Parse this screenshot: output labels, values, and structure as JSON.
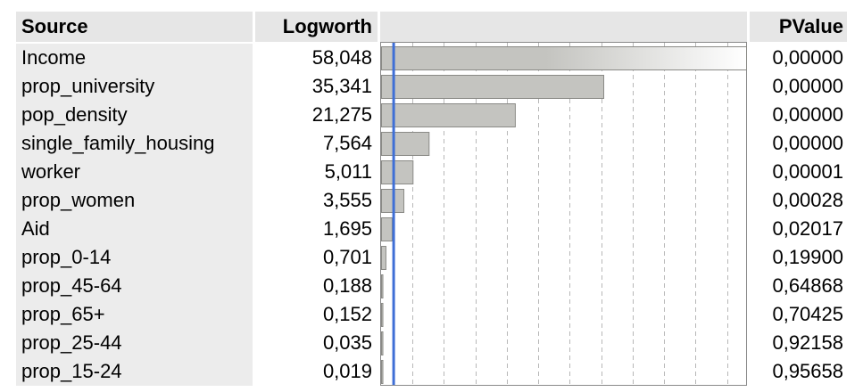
{
  "table": {
    "headers": {
      "source": "Source",
      "logworth": "Logworth",
      "bar": "",
      "pvalue": "PValue"
    }
  },
  "colors": {
    "bar_fill": "#c4c4c0",
    "bar_stroke": "#8a8a86",
    "reference_line": "#3f6fd6",
    "grid": "#b8b8b8",
    "source_bg": "#ececec",
    "header_bg": "#e6e6e6"
  },
  "chart_data": {
    "type": "bar",
    "orientation": "horizontal",
    "categories": [
      "Income",
      "prop_university",
      "pop_density",
      "single_family_housing",
      "worker",
      "prop_women",
      "Aid",
      "prop_0-14",
      "prop_45-64",
      "prop_65+",
      "prop_25-44",
      "prop_15-24"
    ],
    "logworth_labels": [
      "58,048",
      "35,341",
      "21,275",
      "7,564",
      "5,011",
      "3,555",
      "1,695",
      "0,701",
      "0,188",
      "0,152",
      "0,035",
      "0,019"
    ],
    "pvalue_labels": [
      "0,00000",
      "0,00000",
      "0,00000",
      "0,00000",
      "0,00001",
      "0,00028",
      "0,02017",
      "0,19900",
      "0,64868",
      "0,70425",
      "0,92158",
      "0,95658"
    ],
    "values": [
      58.048,
      35.341,
      21.275,
      7.564,
      5.011,
      3.555,
      1.695,
      0.701,
      0.188,
      0.152,
      0.035,
      0.019
    ],
    "xlim": [
      0,
      58.048
    ],
    "reference_value": 2,
    "grid": true
  }
}
